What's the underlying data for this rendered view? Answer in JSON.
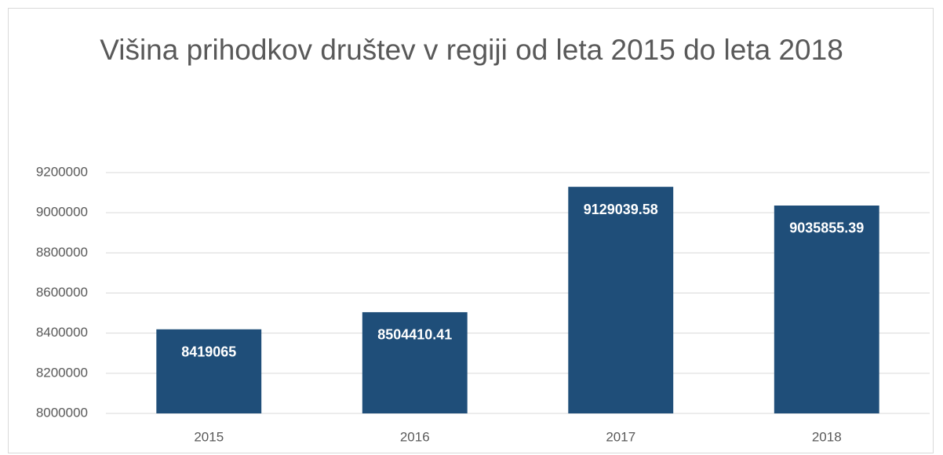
{
  "chart_data": {
    "type": "bar",
    "title": "Višina prihodkov društev v regiji od leta 2015 do leta 2018",
    "categories": [
      "2015",
      "2016",
      "2017",
      "2018"
    ],
    "values": [
      8419065,
      8504410.41,
      9129039.58,
      9035855.39
    ],
    "color": "#1f4e79",
    "ylim": [
      8000000,
      9200000
    ],
    "yticks": [
      8000000,
      8200000,
      8400000,
      8600000,
      8800000,
      9000000,
      9200000
    ],
    "grid": true
  }
}
